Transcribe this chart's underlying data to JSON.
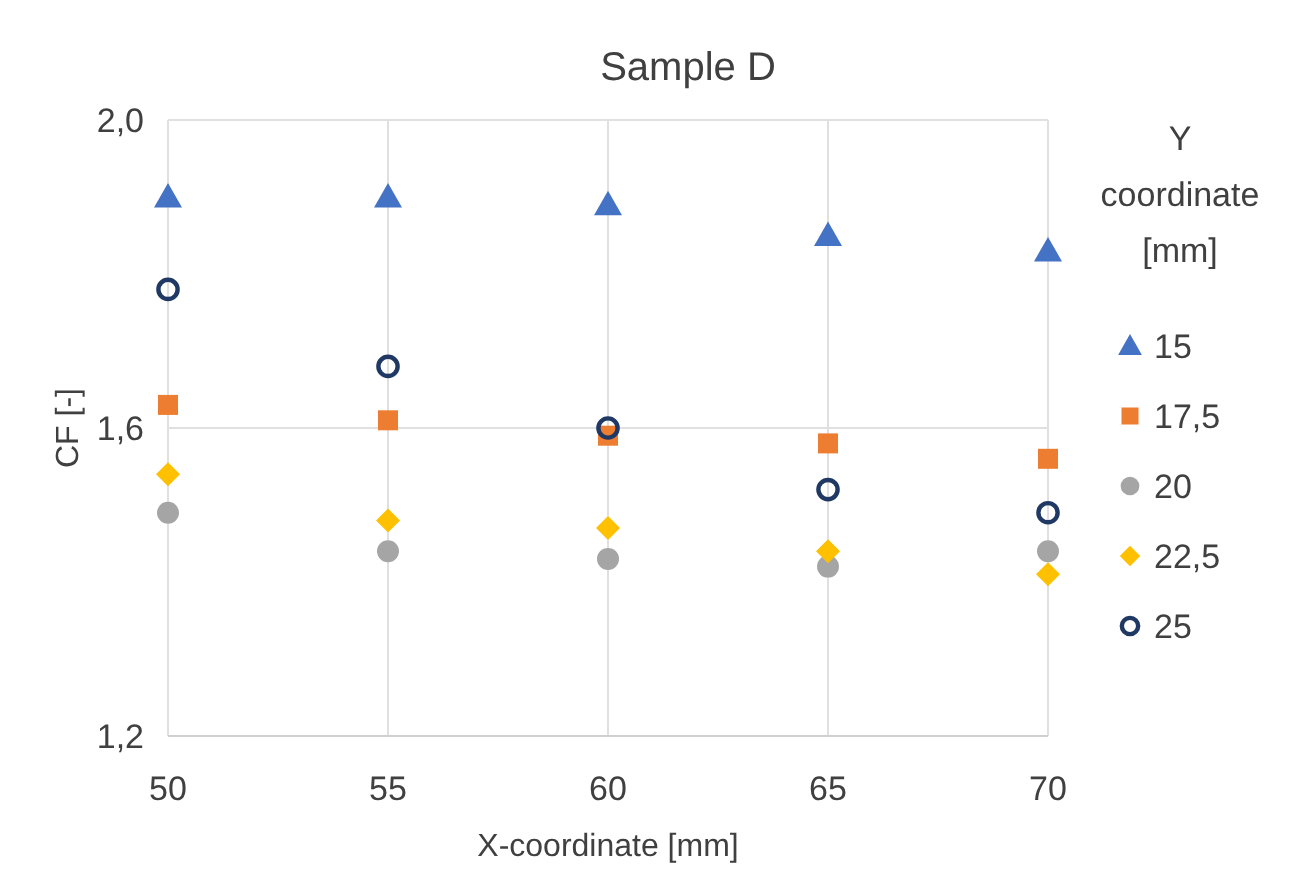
{
  "chart_data": {
    "type": "scatter",
    "title": "Sample D",
    "xlabel": "X-coordinate [mm]",
    "ylabel": "CF [-]",
    "legend_title": "Y coordinate [mm]",
    "legend": "right",
    "grid": true,
    "x": [
      50,
      55,
      60,
      65,
      70
    ],
    "xlim": [
      50,
      70
    ],
    "xticks": [
      50,
      55,
      60,
      65,
      70
    ],
    "ylim": [
      1.2,
      2.0
    ],
    "yticks": [
      {
        "value": 1.2,
        "label": "1,2"
      },
      {
        "value": 1.6,
        "label": "1,6"
      },
      {
        "value": 2.0,
        "label": "2,0"
      }
    ],
    "series": [
      {
        "name": "15",
        "color": "#4472c4",
        "marker": "triangle",
        "values": [
          1.9,
          1.9,
          1.89,
          1.85,
          1.83
        ]
      },
      {
        "name": "17,5",
        "color": "#ed7d31",
        "marker": "square",
        "values": [
          1.63,
          1.61,
          1.59,
          1.58,
          1.56
        ]
      },
      {
        "name": "20",
        "color": "#a5a5a5",
        "marker": "circle",
        "values": [
          1.49,
          1.44,
          1.43,
          1.42,
          1.44
        ]
      },
      {
        "name": "22,5",
        "color": "#ffc000",
        "marker": "diamond",
        "values": [
          1.54,
          1.48,
          1.47,
          1.44,
          1.41
        ]
      },
      {
        "name": "25",
        "color": "#1f3864",
        "marker": "open-circle",
        "values": [
          1.78,
          1.68,
          1.6,
          1.52,
          1.49
        ]
      }
    ]
  }
}
